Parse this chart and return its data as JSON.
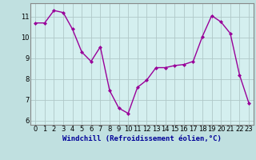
{
  "x": [
    0,
    1,
    2,
    3,
    4,
    5,
    6,
    7,
    8,
    9,
    10,
    11,
    12,
    13,
    14,
    15,
    16,
    17,
    18,
    19,
    20,
    21,
    22,
    23
  ],
  "y": [
    10.7,
    10.7,
    11.3,
    11.2,
    10.4,
    9.3,
    8.85,
    9.55,
    7.45,
    6.6,
    6.35,
    7.6,
    7.95,
    8.55,
    8.55,
    8.65,
    8.7,
    8.85,
    10.05,
    11.05,
    10.75,
    10.2,
    8.2,
    6.85
  ],
  "line_color": "#990099",
  "marker": "D",
  "marker_size": 2,
  "grid_color": "#b0c8c8",
  "xlabel": "Windchill (Refroidissement éolien,°C)",
  "xlabel_color": "#000099",
  "xlabel_fontsize": 6.5,
  "ylabel_ticks": [
    6,
    7,
    8,
    9,
    10,
    11
  ],
  "ylim": [
    5.8,
    11.65
  ],
  "xlim": [
    -0.5,
    23.5
  ],
  "xtick_labels": [
    "0",
    "1",
    "2",
    "3",
    "4",
    "5",
    "6",
    "7",
    "8",
    "9",
    "10",
    "11",
    "12",
    "13",
    "14",
    "15",
    "16",
    "17",
    "18",
    "19",
    "20",
    "21",
    "22",
    "23"
  ],
  "tick_fontsize": 6,
  "plot_bg_color": "#d4efef",
  "outer_bg_color": "#c0e0e0",
  "spine_color": "#888888",
  "linewidth": 1.0
}
